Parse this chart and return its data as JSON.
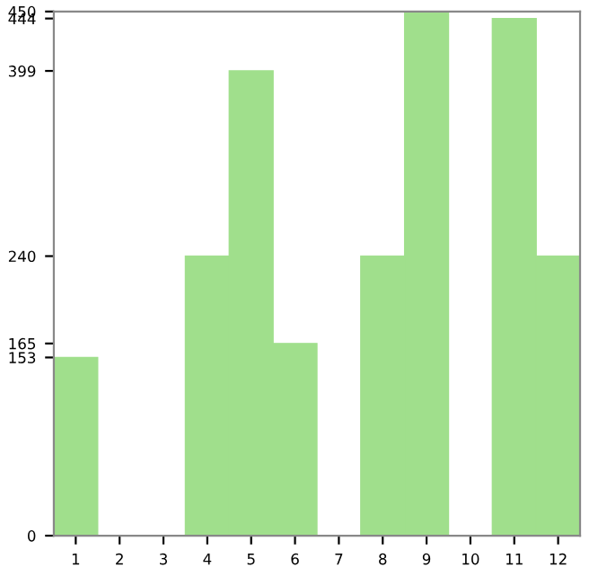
{
  "chart_data": {
    "type": "bar",
    "categories": [
      "1",
      "2",
      "3",
      "4",
      "5",
      "6",
      "7",
      "8",
      "9",
      "10",
      "11",
      "12"
    ],
    "values": [
      153,
      0,
      0,
      240,
      399,
      165,
      0,
      240,
      450,
      0,
      444,
      240
    ],
    "color": "#a0df8c",
    "ylim": [
      0,
      450
    ],
    "yticks": [
      0,
      153,
      165,
      240,
      399,
      444,
      450
    ],
    "grid": false
  }
}
